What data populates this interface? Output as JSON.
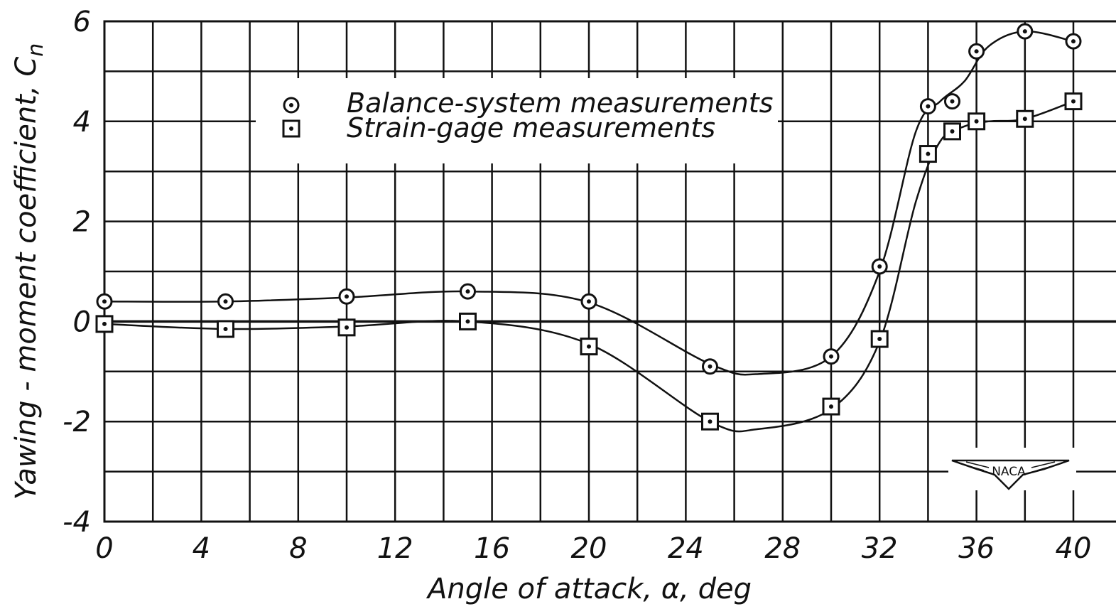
{
  "chart_data": {
    "type": "scatter",
    "xlabel": "Angle of attack, α, deg",
    "ylabel": "Yawing - moment coefficient, C",
    "ylabel_subscript": "n",
    "xlim": [
      0,
      41
    ],
    "ylim": [
      -4,
      6
    ],
    "x_ticks": [
      "0",
      "4",
      "8",
      "12",
      "16",
      "20",
      "24",
      "28",
      "32",
      "36",
      "40"
    ],
    "y_ticks": [
      "6",
      "4",
      "2",
      "0",
      "-2",
      "-4"
    ],
    "grid": true,
    "legend_position": "upper-left",
    "series": [
      {
        "name": "Balance-system measurements",
        "marker": "circle-dot",
        "x": [
          0,
          5,
          10,
          15,
          20,
          25,
          30,
          32,
          34,
          35,
          36,
          38,
          40
        ],
        "y": [
          0.4,
          0.4,
          0.5,
          0.6,
          0.4,
          -0.9,
          -0.7,
          1.1,
          4.3,
          4.4,
          5.4,
          5.8,
          5.6
        ],
        "fit_curve": [
          [
            0,
            0.4
          ],
          [
            5,
            0.4
          ],
          [
            10,
            0.48
          ],
          [
            15,
            0.6
          ],
          [
            20,
            0.38
          ],
          [
            25,
            -0.85
          ],
          [
            27,
            -1.05
          ],
          [
            30,
            -0.7
          ],
          [
            32,
            1.0
          ],
          [
            33.5,
            3.8
          ],
          [
            34.5,
            4.4
          ],
          [
            35.5,
            4.8
          ],
          [
            36.5,
            5.5
          ],
          [
            38,
            5.8
          ],
          [
            40,
            5.6
          ]
        ]
      },
      {
        "name": "Strain-gage measurements",
        "marker": "square-dot",
        "x": [
          0,
          5,
          10,
          15,
          20,
          25,
          30,
          32,
          34,
          35,
          36,
          38,
          40
        ],
        "y": [
          -0.05,
          -0.15,
          -0.12,
          0.0,
          -0.5,
          -2.0,
          -1.7,
          -0.35,
          3.35,
          3.8,
          4.0,
          4.05,
          4.4
        ],
        "fit_curve": [
          [
            0,
            -0.05
          ],
          [
            5,
            -0.15
          ],
          [
            10,
            -0.1
          ],
          [
            15,
            0.0
          ],
          [
            20,
            -0.45
          ],
          [
            25,
            -2.0
          ],
          [
            27,
            -2.15
          ],
          [
            30,
            -1.75
          ],
          [
            32,
            -0.4
          ],
          [
            33.5,
            2.4
          ],
          [
            34.5,
            3.6
          ],
          [
            35.5,
            3.9
          ],
          [
            36.5,
            4.0
          ],
          [
            38,
            4.05
          ],
          [
            40,
            4.4
          ]
        ]
      }
    ]
  },
  "logo": {
    "label": "NACA",
    "icon": "naca-wings-logo"
  }
}
